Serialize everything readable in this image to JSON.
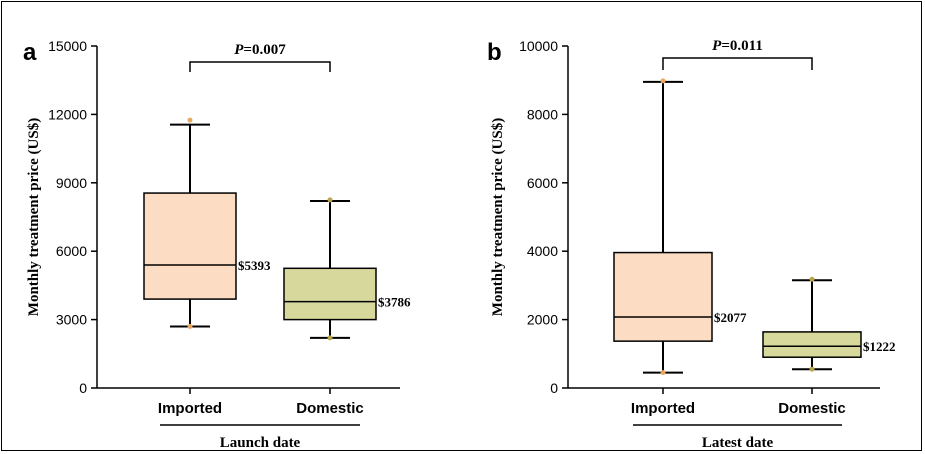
{
  "chart_data": [
    {
      "type": "box",
      "panel_label": "a",
      "ylabel": "Monthly treatment price (US$)",
      "ylim": [
        0,
        15000
      ],
      "yticks": [
        0,
        3000,
        6000,
        9000,
        12000,
        15000
      ],
      "ytick_labels": [
        "0",
        "3000",
        "6000",
        "9000",
        "12000",
        "15000"
      ],
      "categories": [
        "Imported",
        "Domestic"
      ],
      "group_label": "Launch date",
      "p_value_label": "=0.007",
      "p_prefix": "P",
      "boxes": [
        {
          "category": "Imported",
          "whisker_low": 2700,
          "q1": 3900,
          "median": 5393,
          "q3": 8550,
          "whisker_high": 11550,
          "points": [
            2700,
            11750
          ],
          "median_label": "$5393",
          "fill": "#fcdcc2"
        },
        {
          "category": "Domestic",
          "whisker_low": 2200,
          "q1": 3000,
          "median": 3786,
          "q3": 5250,
          "whisker_high": 8200,
          "points": [
            2200,
            8250
          ],
          "median_label": "$3786",
          "fill": "#d7d89c"
        }
      ]
    },
    {
      "type": "box",
      "panel_label": "b",
      "ylabel": "Monthly treatment price (US$)",
      "ylim": [
        0,
        10000
      ],
      "yticks": [
        0,
        2000,
        4000,
        6000,
        8000,
        10000
      ],
      "ytick_labels": [
        "0",
        "2000",
        "4000",
        "6000",
        "8000",
        "10000"
      ],
      "categories": [
        "Imported",
        "Domestic"
      ],
      "group_label": "Latest date",
      "p_value_label": "=0.011",
      "p_prefix": "P",
      "boxes": [
        {
          "category": "Imported",
          "whisker_low": 450,
          "q1": 1370,
          "median": 2077,
          "q3": 3960,
          "whisker_high": 8950,
          "points": [
            450,
            8980
          ],
          "median_label": "$2077",
          "fill": "#fcdcc2"
        },
        {
          "category": "Domestic",
          "whisker_low": 550,
          "q1": 900,
          "median": 1222,
          "q3": 1640,
          "whisker_high": 3150,
          "points": [
            550,
            3180
          ],
          "median_label": "$1222",
          "fill": "#d7d89c"
        }
      ]
    }
  ],
  "colors": {
    "outlier_point": "#e8a862",
    "outlier_point_domestic": "#b9a64a",
    "stroke": "#000000"
  }
}
